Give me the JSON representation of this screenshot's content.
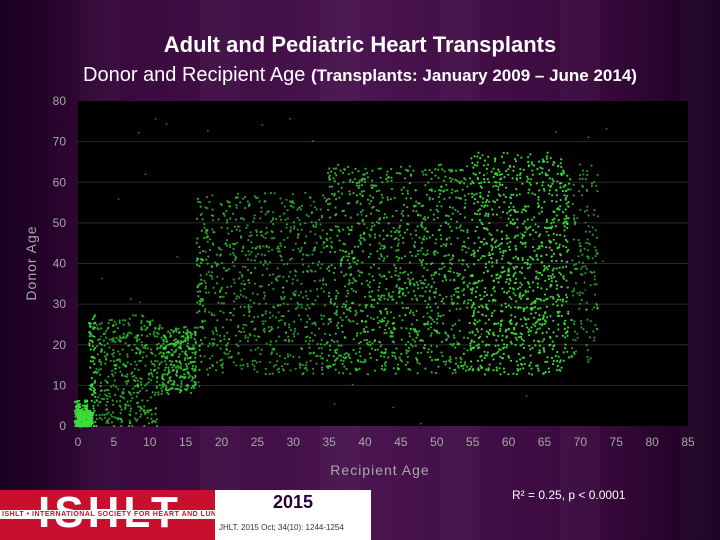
{
  "slide": {
    "title": "Adult and Pediatric Heart Transplants",
    "subtitle_main": "Donor and Recipient Age",
    "subtitle_note": "(Transplants: January 2009 – June 2014)",
    "stat_text": "R² = 0.25, p < 0.0001",
    "footer": {
      "logo_text": "ISHLT",
      "logo_subtext": "ISHLT • INTERNATIONAL SOCIETY FOR HEART AND LUNG TRANSPLANTATION",
      "year": "2015",
      "citation": "JHLT. 2015 Oct; 34(10): 1244-1254"
    }
  },
  "chart_data": {
    "type": "scatter",
    "title": "",
    "xlabel": "Recipient Age",
    "ylabel": "Donor Age",
    "xlim": [
      0,
      85
    ],
    "ylim": [
      0,
      80
    ],
    "xticks": [
      "0",
      "5",
      "10",
      "15",
      "20",
      "25",
      "30",
      "35",
      "40",
      "45",
      "50",
      "55",
      "60",
      "65",
      "70",
      "75",
      "80",
      "85"
    ],
    "yticks": [
      "0",
      "10",
      "20",
      "30",
      "40",
      "50",
      "60",
      "70",
      "80"
    ],
    "grid": "horizontal",
    "point_color": "#3ddc3a",
    "background": "#000000",
    "density_clusters": [
      {
        "x_range": [
          0,
          2
        ],
        "y_range": [
          0,
          4
        ],
        "weight": 1.0
      },
      {
        "x_range": [
          2,
          12
        ],
        "y_range": [
          2,
          25
        ],
        "weight": 0.5
      },
      {
        "x_range": [
          12,
          17
        ],
        "y_range": [
          10,
          22
        ],
        "weight": 0.7
      },
      {
        "x_range": [
          17,
          35
        ],
        "y_range": [
          15,
          55
        ],
        "weight": 0.45
      },
      {
        "x_range": [
          35,
          55
        ],
        "y_range": [
          15,
          62
        ],
        "weight": 0.7
      },
      {
        "x_range": [
          55,
          68
        ],
        "y_range": [
          15,
          65
        ],
        "weight": 1.0
      },
      {
        "x_range": [
          68,
          73
        ],
        "y_range": [
          18,
          62
        ],
        "weight": 0.4
      }
    ]
  }
}
